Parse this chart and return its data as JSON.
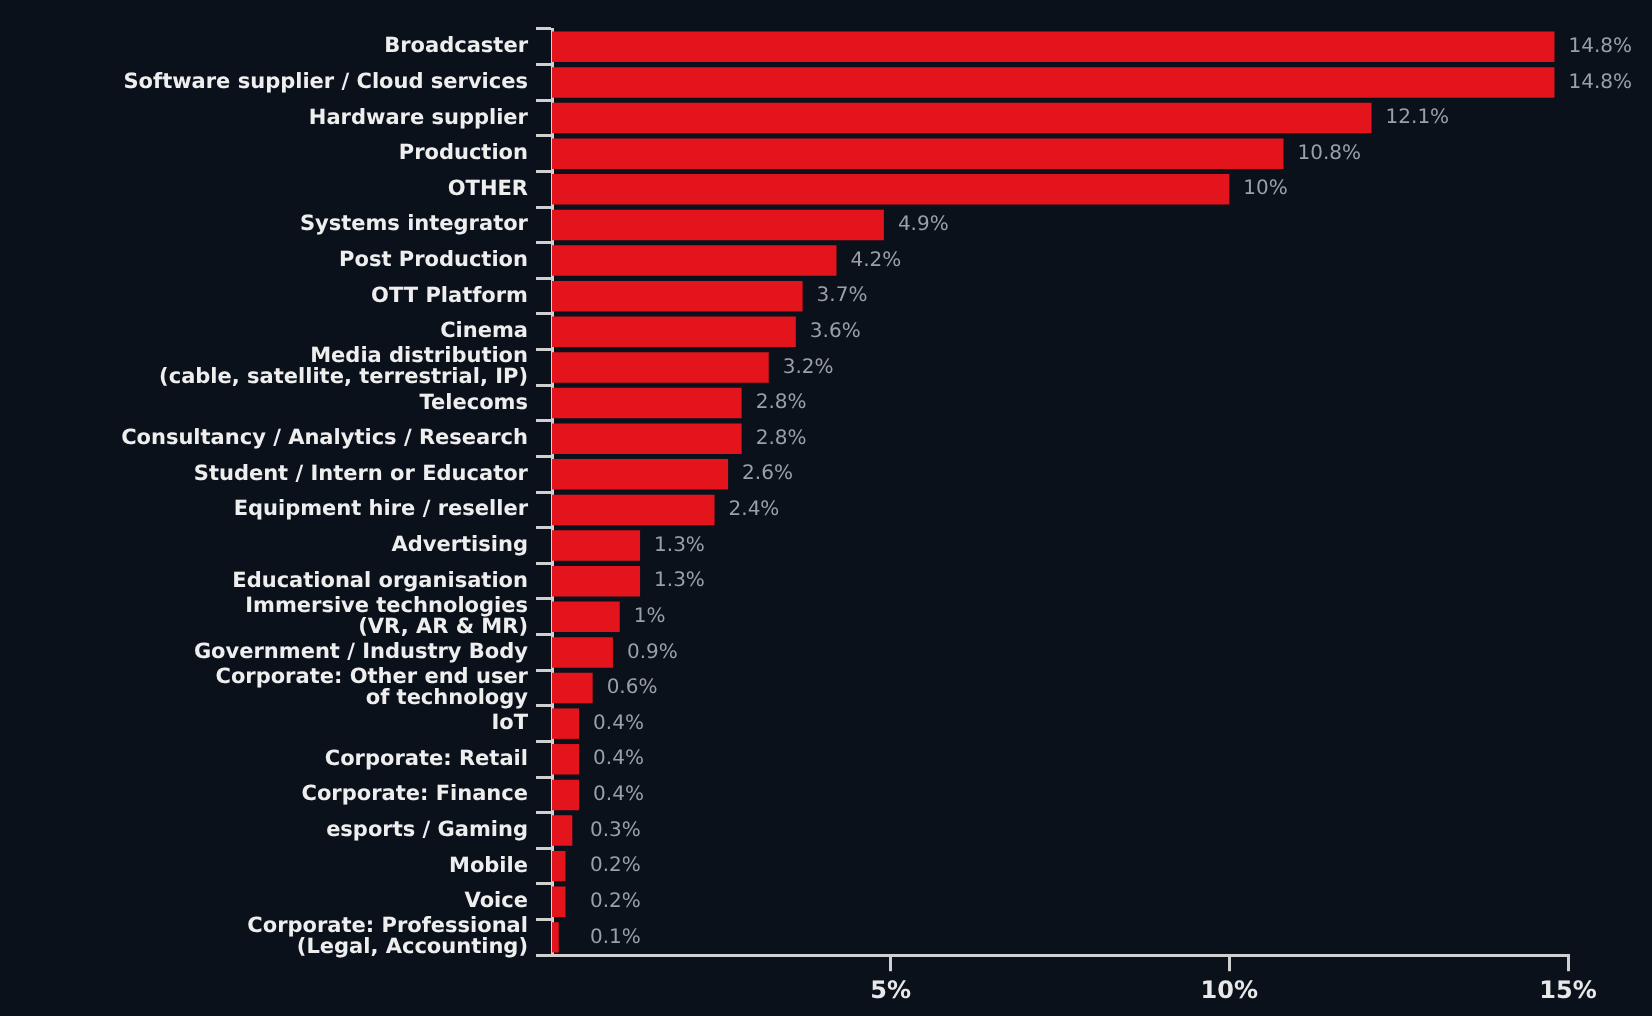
{
  "chart_data": {
    "type": "bar",
    "orientation": "horizontal",
    "categories": [
      "Broadcaster",
      "Software supplier / Cloud services",
      "Hardware supplier",
      "Production",
      "OTHER",
      "Systems integrator",
      "Post Production",
      "OTT Platform",
      "Cinema",
      "Media distribution\n(cable, satellite, terrestrial, IP)",
      "Telecoms",
      "Consultancy / Analytics / Research",
      "Student / Intern or Educator",
      "Equipment hire / reseller",
      "Advertising",
      "Educational organisation",
      "Immersive technologies\n(VR, AR & MR)",
      "Government / Industry Body",
      "Corporate: Other end user\nof technology",
      "IoT",
      "Corporate: Retail",
      "Corporate: Finance",
      "esports / Gaming",
      "Mobile",
      "Voice",
      "Corporate: Professional\n(Legal, Accounting)"
    ],
    "values": [
      14.8,
      14.8,
      12.1,
      10.8,
      10,
      4.9,
      4.2,
      3.7,
      3.6,
      3.2,
      2.8,
      2.8,
      2.6,
      2.4,
      1.3,
      1.3,
      1,
      0.9,
      0.6,
      0.4,
      0.4,
      0.4,
      0.3,
      0.2,
      0.2,
      0.1
    ],
    "value_labels": [
      "14.8%",
      "14.8%",
      "12.1%",
      "10.8%",
      "10%",
      "4.9%",
      "4.2%",
      "3.7%",
      "3.6%",
      "3.2%",
      "2.8%",
      "2.8%",
      "2.6%",
      "2.4%",
      "1.3%",
      "1.3%",
      "1%",
      "0.9%",
      "0.6%",
      "0.4%",
      "0.4%",
      "0.4%",
      "0.3%",
      "0.2%",
      "0.2%",
      "0.1%"
    ],
    "color": "#e3141b",
    "xlim": [
      0,
      15
    ],
    "xticks": [
      {
        "value": 5,
        "label": "5%"
      },
      {
        "value": 10,
        "label": "10%"
      },
      {
        "value": 15,
        "label": "15%"
      }
    ],
    "grid": false,
    "legend": false
  }
}
